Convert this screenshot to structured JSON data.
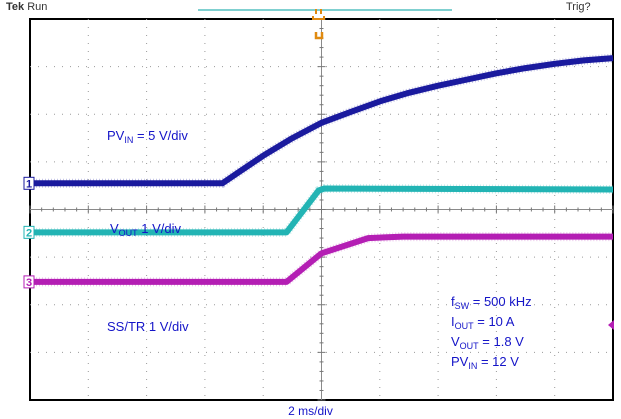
{
  "header": {
    "brand": "Tek",
    "state": "Run",
    "trigger_status": "Trig?"
  },
  "footer": {
    "timebase": "2 ms/div"
  },
  "labels": {
    "pvin": {
      "main": "PV",
      "sub": "IN",
      "rest": " = 5 V/div"
    },
    "vout": {
      "main": "V",
      "sub": "OUT",
      "rest": " 1 V/div"
    },
    "sstr": {
      "text": "SS/TR 1 V/div"
    },
    "conditions": [
      {
        "main": "f",
        "sub": "SW",
        "rest": " = 500 kHz"
      },
      {
        "main": "I",
        "sub": "OUT",
        "rest": " = 10 A"
      },
      {
        "main": "V",
        "sub": "OUT",
        "rest": " = 1.8 V"
      },
      {
        "main": "PV",
        "sub": "IN",
        "rest": " = 12 V"
      }
    ]
  },
  "chart_data": {
    "type": "line",
    "xlim": [
      0,
      10
    ],
    "ylim": [
      -4,
      4
    ],
    "grid": true,
    "xlabel": "2 ms/div",
    "series": [
      {
        "marker": "1",
        "color": "#1a1a9e",
        "points": [
          [
            0,
            0.55
          ],
          [
            3.3,
            0.55
          ],
          [
            3.6,
            0.8
          ],
          [
            4.0,
            1.13
          ],
          [
            4.5,
            1.5
          ],
          [
            5.0,
            1.82
          ],
          [
            5.5,
            2.05
          ],
          [
            6,
            2.27
          ],
          [
            6.5,
            2.45
          ],
          [
            7,
            2.6
          ],
          [
            7.5,
            2.73
          ],
          [
            8,
            2.86
          ],
          [
            8.5,
            2.97
          ],
          [
            9,
            3.06
          ],
          [
            9.5,
            3.13
          ],
          [
            10,
            3.18
          ]
        ]
      },
      {
        "marker": "2",
        "color": "#22b4b4",
        "points": [
          [
            0,
            -0.48
          ],
          [
            4.4,
            -0.48
          ],
          [
            4.95,
            0.4
          ],
          [
            5.05,
            0.44
          ],
          [
            10,
            0.42
          ]
        ]
      },
      {
        "marker": "3",
        "color": "#b41eb4",
        "points": [
          [
            0,
            -1.52
          ],
          [
            4.4,
            -1.52
          ],
          [
            5.0,
            -0.92
          ],
          [
            5.8,
            -0.6
          ],
          [
            6.4,
            -0.57
          ],
          [
            10,
            -0.57
          ]
        ]
      }
    ]
  }
}
